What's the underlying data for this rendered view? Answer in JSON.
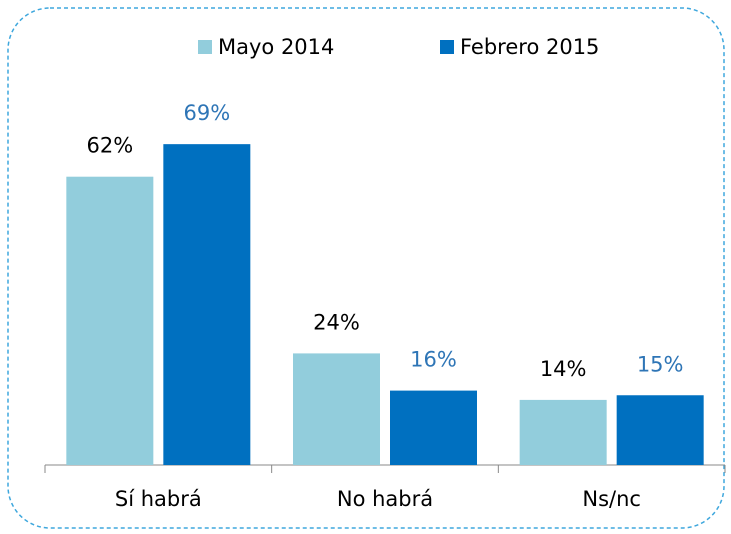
{
  "chart_data": {
    "type": "bar",
    "categories": [
      "Sí habrá",
      "No habrá",
      "Ns/nc"
    ],
    "series": [
      {
        "name": "Mayo 2014",
        "color": "#92cddc",
        "label_color": "#000000",
        "values": [
          62,
          24,
          14
        ],
        "value_labels": [
          "62%",
          "24%",
          "14%"
        ]
      },
      {
        "name": "Febrero 2015",
        "color": "#0070c0",
        "label_color": "#2e75b6",
        "values": [
          69,
          16,
          15
        ],
        "value_labels": [
          "69%",
          "16%",
          "15%"
        ]
      }
    ],
    "legend": "top"
  }
}
